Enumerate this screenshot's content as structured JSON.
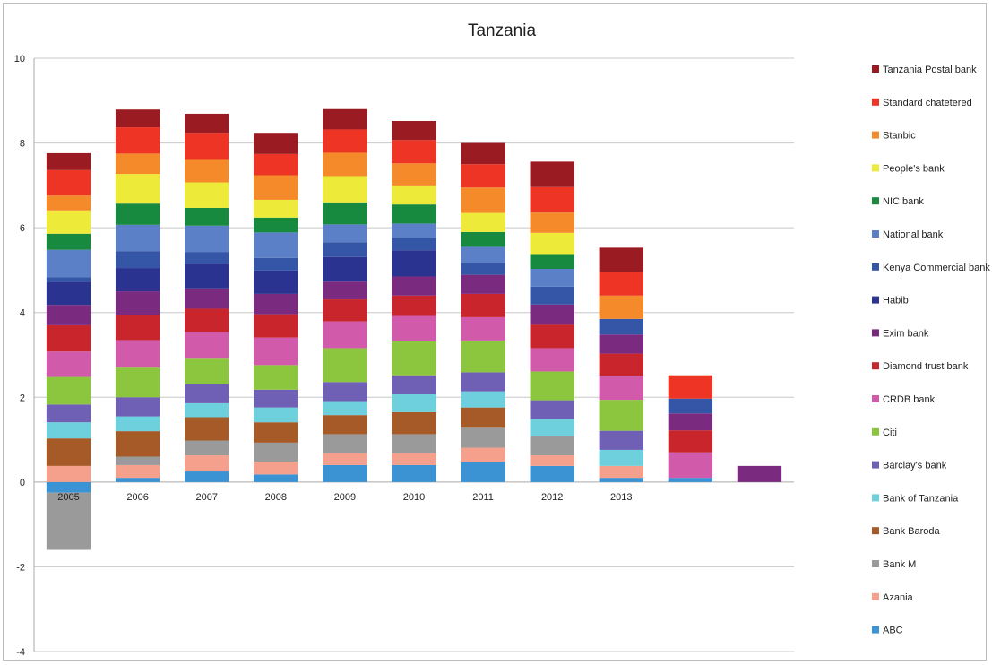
{
  "chart_data": {
    "type": "bar",
    "stacked": true,
    "title": "Tanzania",
    "xlabel": "",
    "ylabel": "",
    "ylim": [
      -4,
      10
    ],
    "yticks": [
      -4,
      -2,
      0,
      2,
      4,
      6,
      8,
      10
    ],
    "grid": true,
    "legend_position": "right",
    "categories": [
      "2005",
      "2006",
      "2007",
      "2008",
      "2009",
      "2010",
      "2011",
      "2012",
      "2013",
      "",
      ""
    ],
    "series": [
      {
        "name": "ABC",
        "color": "#3b93d4",
        "values": [
          -0.25,
          0.1,
          0.25,
          0.18,
          0.4,
          0.4,
          0.48,
          0.38,
          0.1,
          0.1,
          0
        ]
      },
      {
        "name": "Azania",
        "color": "#f4a08c",
        "values": [
          0.38,
          0.3,
          0.38,
          0.3,
          0.28,
          0.28,
          0.33,
          0.25,
          0.28,
          0,
          0
        ]
      },
      {
        "name": "Bank M",
        "color": "#9a9a9a",
        "values": [
          -1.35,
          0.2,
          0.35,
          0.45,
          0.45,
          0.45,
          0.47,
          0.45,
          0,
          0,
          0
        ]
      },
      {
        "name": "Bank Baroda",
        "color": "#a65a28",
        "values": [
          0.65,
          0.6,
          0.55,
          0.48,
          0.45,
          0.52,
          0.48,
          0,
          0,
          0,
          0
        ]
      },
      {
        "name": "Bank of Tanzania",
        "color": "#6ed0dc",
        "values": [
          0.38,
          0.35,
          0.33,
          0.35,
          0.33,
          0.42,
          0.38,
          0.4,
          0.38,
          0,
          0
        ]
      },
      {
        "name": "Barclay's bank",
        "color": "#6f5fb5",
        "values": [
          0.42,
          0.45,
          0.45,
          0.42,
          0.45,
          0.45,
          0.45,
          0.45,
          0.45,
          0,
          0
        ]
      },
      {
        "name": "Citi",
        "color": "#8cc63f",
        "values": [
          0.65,
          0.7,
          0.6,
          0.58,
          0.8,
          0.8,
          0.75,
          0.68,
          0.73,
          0,
          0
        ]
      },
      {
        "name": "CRDB bank",
        "color": "#d25aaa",
        "values": [
          0.6,
          0.65,
          0.63,
          0.65,
          0.63,
          0.6,
          0.55,
          0.55,
          0.57,
          0.6,
          0
        ]
      },
      {
        "name": "Diamond trust bank",
        "color": "#c8262c",
        "values": [
          0.62,
          0.6,
          0.55,
          0.55,
          0.52,
          0.48,
          0.55,
          0.55,
          0.52,
          0.52,
          0
        ]
      },
      {
        "name": "Exim bank",
        "color": "#7a2a7f",
        "values": [
          0.48,
          0.55,
          0.48,
          0.48,
          0.42,
          0.45,
          0.45,
          0.48,
          0.45,
          0.4,
          0.38
        ]
      },
      {
        "name": "Habib",
        "color": "#2a3390",
        "values": [
          0.55,
          0.55,
          0.58,
          0.55,
          0.58,
          0.62,
          0,
          0,
          0,
          0,
          0
        ]
      },
      {
        "name": "Kenya Commercial bank",
        "color": "#3555a6",
        "values": [
          0.1,
          0.4,
          0.28,
          0.3,
          0.35,
          0.28,
          0.28,
          0.42,
          0.37,
          0.35,
          0
        ]
      },
      {
        "name": "National bank",
        "color": "#5b80c8",
        "values": [
          0.65,
          0.62,
          0.62,
          0.6,
          0.42,
          0.35,
          0.38,
          0.42,
          0,
          0,
          0
        ]
      },
      {
        "name": "NIC bank",
        "color": "#178a3f",
        "values": [
          0.38,
          0.5,
          0.42,
          0.35,
          0.52,
          0.45,
          0.35,
          0.35,
          0,
          0,
          0
        ]
      },
      {
        "name": "People's bank",
        "color": "#eeea3a",
        "values": [
          0.55,
          0.7,
          0.6,
          0.42,
          0.62,
          0.45,
          0.45,
          0.5,
          0,
          0,
          0
        ]
      },
      {
        "name": "Stanbic",
        "color": "#f58a2a",
        "values": [
          0.35,
          0.48,
          0.55,
          0.58,
          0.55,
          0.52,
          0.6,
          0.48,
          0.55,
          0,
          0
        ]
      },
      {
        "name": "Standard chatetered",
        "color": "#ee3424",
        "values": [
          0.6,
          0.62,
          0.62,
          0.5,
          0.55,
          0.55,
          0.55,
          0.6,
          0.55,
          0.55,
          0
        ]
      },
      {
        "name": "Tanzania Postal bank",
        "color": "#9a1c22",
        "values": [
          0.4,
          0.42,
          0.45,
          0.5,
          0.48,
          0.45,
          0.5,
          0.6,
          0.58,
          0,
          0
        ]
      }
    ]
  }
}
